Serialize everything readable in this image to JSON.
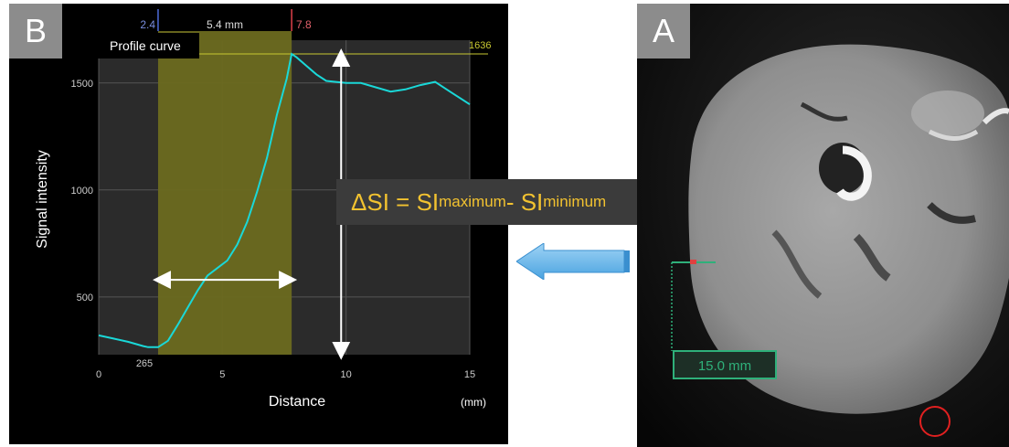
{
  "panel_b": {
    "tag": "B",
    "profile_label": "Profile curve",
    "marker_left": "2.4",
    "marker_right": "7.8",
    "width_label": "5.4 mm",
    "max_label": "1636",
    "min_label": "265",
    "xlabel": "Distance",
    "xunit": "(mm)",
    "ylabel": "Signal intensity"
  },
  "panel_a": {
    "tag": "A",
    "measure_label": "15.0 mm"
  },
  "formula": {
    "prefix": "ΔSI = SI",
    "sub_max": "maximum",
    "minus": " - SI",
    "sub_min": "minimum"
  },
  "colors": {
    "curve": "#1ad8d8",
    "highlight": "#6b6a1f",
    "marker_left": "#4d6bd8",
    "marker_right": "#e0404a",
    "max_line": "#c8c832",
    "formula_text": "#f2c230",
    "arrow": "#5fb1e6"
  },
  "chart_data": {
    "type": "line",
    "xlabel": "Distance",
    "ylabel": "Signal intensity",
    "xlim": [
      0,
      15
    ],
    "ylim": [
      230,
      1700
    ],
    "xticks": [
      0,
      5,
      10,
      15
    ],
    "yticks": [
      500,
      1000,
      1500
    ],
    "highlight_range": [
      2.4,
      7.8
    ],
    "series": [
      {
        "x": [
          0,
          0.6,
          1.2,
          1.8,
          2.0,
          2.4,
          2.8,
          3.2,
          3.6,
          4.0,
          4.4,
          4.8,
          5.2,
          5.6,
          6.0,
          6.4,
          6.8,
          7.2,
          7.6,
          7.8,
          8.0,
          8.4,
          8.8,
          9.2,
          9.6,
          10.0,
          10.6,
          11.2,
          11.8,
          12.4,
          13.0,
          13.6,
          14.2,
          15.0
        ],
        "y": [
          320,
          305,
          290,
          270,
          265,
          265,
          295,
          370,
          450,
          530,
          600,
          635,
          670,
          745,
          850,
          990,
          1150,
          1350,
          1520,
          1636,
          1620,
          1580,
          1540,
          1510,
          1505,
          1500,
          1500,
          1480,
          1460,
          1470,
          1490,
          1505,
          1460,
          1400
        ]
      }
    ],
    "annotations": [
      {
        "text": "2.4",
        "x": 2.4
      },
      {
        "text": "7.8",
        "x": 7.8
      },
      {
        "text": "5.4 mm"
      },
      {
        "text": "1636",
        "y": 1636
      },
      {
        "text": "265",
        "y": 265
      }
    ]
  }
}
